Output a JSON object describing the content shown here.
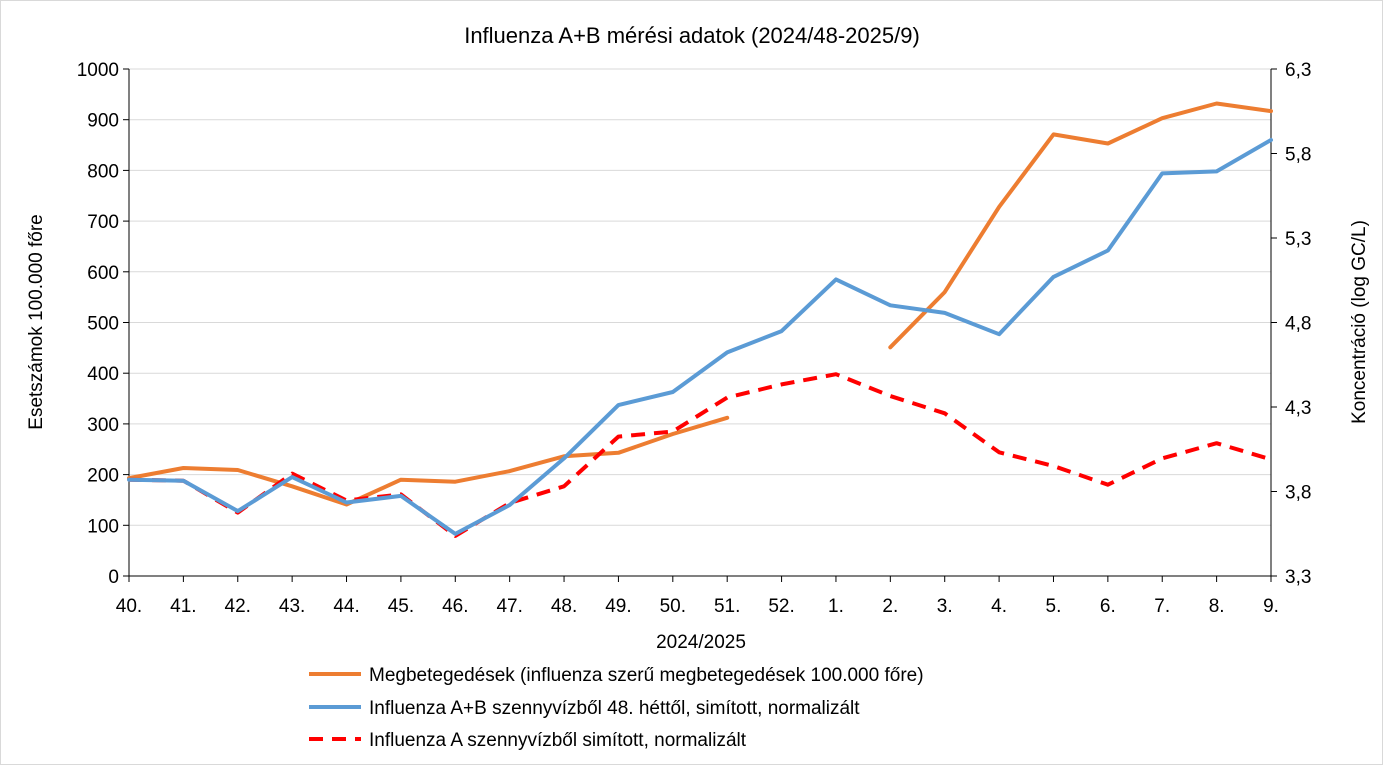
{
  "chart_data": {
    "type": "line",
    "title": "Influenza A+B mérési adatok (2024/48-2025/9)",
    "xlabel": "2024/2025",
    "ylabel": "Esetszámok 100.000 főre",
    "y2label": "Koncentráció (log GC/L)",
    "categories": [
      "40.",
      "41.",
      "42.",
      "43.",
      "44.",
      "45.",
      "46.",
      "47.",
      "48.",
      "49.",
      "50.",
      "51.",
      "52.",
      "1.",
      "2.",
      "3.",
      "4.",
      "5.",
      "6.",
      "7.",
      "8.",
      "9."
    ],
    "ylim": [
      0,
      1000
    ],
    "yticks": [
      "0",
      "100",
      "200",
      "300",
      "400",
      "500",
      "600",
      "700",
      "800",
      "900",
      "1000"
    ],
    "y2lim": [
      3.3,
      6.3
    ],
    "y2ticks": [
      "3,3",
      "3,8",
      "4,3",
      "4,8",
      "5,3",
      "5,8",
      "6,3"
    ],
    "grid": true,
    "legend_position": "bottom",
    "series": [
      {
        "name": "Megbetegedések (influenza szerű megbetegedések 100.000 főre)",
        "axis": "left",
        "color": "#ED7D31",
        "style": "solid",
        "values": [
          193,
          213,
          209,
          177,
          141,
          190,
          186,
          207,
          236,
          243,
          280,
          312,
          null,
          null,
          451,
          560,
          728,
          871,
          853,
          903,
          932,
          917
        ]
      },
      {
        "name": "Influenza A+B szennyvízből 48. héttől, simított, normalizált",
        "axis": "left",
        "color": "#5B9BD5",
        "style": "solid",
        "values": [
          190,
          188,
          128,
          195,
          145,
          158,
          83,
          140,
          232,
          337,
          363,
          441,
          483,
          585,
          534,
          519,
          477,
          590,
          642,
          794,
          798,
          860
        ]
      },
      {
        "name": "Influenza A szennyvízből simított, normalizált",
        "axis": "left",
        "color": "#FF0000",
        "style": "dashed",
        "values": [
          190,
          188,
          125,
          202,
          149,
          161,
          79,
          144,
          177,
          275,
          285,
          352,
          378,
          398,
          355,
          321,
          244,
          217,
          180,
          232,
          262,
          230
        ]
      }
    ]
  }
}
